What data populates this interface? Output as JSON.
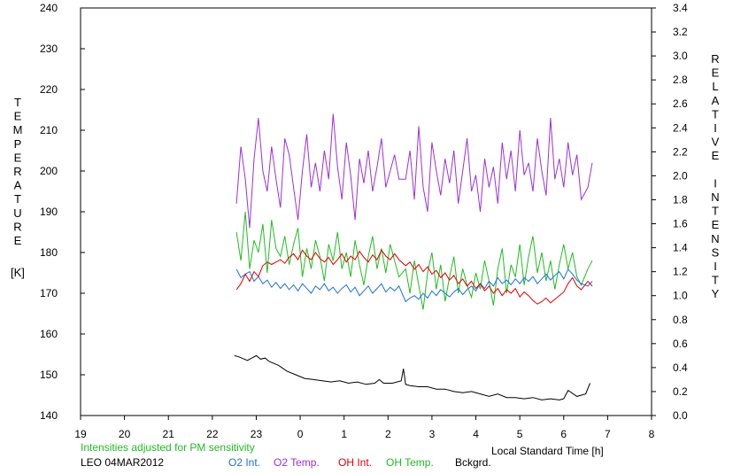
{
  "chart_data": {
    "type": "line",
    "left_axis": {
      "label": "TEMPERATURE",
      "unit": "[K]",
      "ylim": [
        140,
        240
      ],
      "ticks": [
        "140",
        "150",
        "160",
        "170",
        "180",
        "190",
        "200",
        "210",
        "220",
        "230",
        "240"
      ]
    },
    "right_axis": {
      "label": "RELATIVE INTENSITY",
      "ylim": [
        0.0,
        3.4
      ],
      "ticks": [
        "0.0",
        "0.2",
        "0.4",
        "0.6",
        "0.8",
        "1.0",
        "1.2",
        "1.4",
        "1.6",
        "1.8",
        "2.0",
        "2.2",
        "2.4",
        "2.6",
        "2.8",
        "3.0",
        "3.2",
        "3.4"
      ]
    },
    "x_axis": {
      "label": "Local Standard Time [h]",
      "ticks": [
        "19",
        "20",
        "21",
        "22",
        "23",
        "0",
        "1",
        "2",
        "3",
        "4",
        "5",
        "6",
        "7",
        "8"
      ]
    },
    "note": "Intensities adjusted for PM sensitivity",
    "station": "LEO 04MAR2012",
    "grid": false,
    "legend": [
      {
        "name": "O2 Int.",
        "color": "#1f6fe0"
      },
      {
        "name": "O2 Temp.",
        "color": "#9b30d9"
      },
      {
        "name": "OH Int.",
        "color": "#e00000"
      },
      {
        "name": "OH Temp.",
        "color": "#22bb22"
      },
      {
        "name": "Bckgrd.",
        "color": "#000000"
      }
    ],
    "series": [
      {
        "name": "O2 Temp.",
        "axis": "left",
        "color": "#9b30d9",
        "x": [
          22.55,
          22.65,
          22.75,
          22.85,
          22.95,
          23.05,
          23.15,
          23.25,
          23.35,
          23.45,
          23.55,
          23.65,
          23.75,
          23.85,
          23.95,
          24.05,
          24.15,
          24.25,
          24.35,
          24.45,
          24.55,
          24.65,
          24.75,
          24.85,
          24.95,
          25.05,
          25.15,
          25.25,
          25.35,
          25.45,
          25.55,
          25.65,
          25.75,
          25.85,
          25.95,
          26.05,
          26.15,
          26.25,
          26.4,
          26.5,
          26.6,
          26.7,
          26.8,
          26.9,
          27.0,
          27.1,
          27.2,
          27.3,
          27.4,
          27.5,
          27.6,
          27.7,
          27.8,
          27.9,
          28.0,
          28.1,
          28.2,
          28.3,
          28.4,
          28.5,
          28.6,
          28.7,
          28.8,
          28.9,
          29.0,
          29.1,
          29.2,
          29.3,
          29.4,
          29.5,
          29.6,
          29.7,
          29.8,
          29.9,
          30.0,
          30.1,
          30.2,
          30.3,
          30.4,
          30.55,
          30.65
        ],
        "values": [
          192,
          206,
          198,
          186,
          203,
          213,
          200,
          195,
          206,
          198,
          191,
          208,
          204,
          196,
          188,
          200,
          209,
          196,
          202,
          195,
          205,
          198,
          214,
          201,
          193,
          207,
          199,
          188,
          203,
          197,
          205,
          195,
          201,
          208,
          196,
          200,
          204,
          198,
          198,
          205,
          193,
          211,
          196,
          190,
          207,
          200,
          194,
          203,
          197,
          205,
          192,
          200,
          208,
          195,
          199,
          190,
          203,
          196,
          201,
          192,
          207,
          198,
          205,
          195,
          210,
          199,
          202,
          195,
          208,
          200,
          194,
          213,
          198,
          203,
          196,
          207,
          199,
          204,
          193,
          196,
          202
        ]
      },
      {
        "name": "OH Temp.",
        "axis": "left",
        "color": "#22bb22",
        "x": [
          22.55,
          22.65,
          22.75,
          22.85,
          22.95,
          23.05,
          23.15,
          23.25,
          23.35,
          23.45,
          23.55,
          23.65,
          23.75,
          23.85,
          23.95,
          24.05,
          24.15,
          24.25,
          24.35,
          24.45,
          24.55,
          24.65,
          24.75,
          24.85,
          24.95,
          25.05,
          25.15,
          25.25,
          25.35,
          25.45,
          25.55,
          25.65,
          25.75,
          25.85,
          25.95,
          26.05,
          26.15,
          26.25,
          26.4,
          26.5,
          26.6,
          26.7,
          26.8,
          26.9,
          27.0,
          27.1,
          27.2,
          27.3,
          27.4,
          27.5,
          27.6,
          27.7,
          27.8,
          27.9,
          28.0,
          28.1,
          28.2,
          28.3,
          28.4,
          28.5,
          28.6,
          28.7,
          28.8,
          28.9,
          29.0,
          29.1,
          29.2,
          29.3,
          29.4,
          29.5,
          29.6,
          29.7,
          29.8,
          29.9,
          30.0,
          30.1,
          30.2,
          30.3,
          30.4,
          30.55,
          30.65
        ],
        "values": [
          185,
          178,
          190,
          176,
          183,
          180,
          187,
          175,
          188,
          181,
          179,
          184,
          177,
          182,
          186,
          174,
          181,
          176,
          183,
          179,
          173,
          182,
          178,
          185,
          176,
          180,
          174,
          183,
          177,
          172,
          179,
          184,
          176,
          181,
          175,
          182,
          178,
          174,
          176,
          170,
          178,
          172,
          166,
          175,
          180,
          171,
          177,
          168,
          174,
          179,
          170,
          176,
          172,
          169,
          175,
          171,
          178,
          173,
          167,
          176,
          181,
          170,
          177,
          174,
          182,
          172,
          179,
          184,
          175,
          180,
          173,
          178,
          171,
          177,
          182,
          176,
          180,
          174,
          172,
          176,
          178
        ]
      },
      {
        "name": "OH Int.",
        "axis": "right",
        "color": "#e00000",
        "x": [
          22.55,
          22.65,
          22.75,
          22.85,
          22.95,
          23.05,
          23.15,
          23.25,
          23.35,
          23.45,
          23.55,
          23.65,
          23.75,
          23.85,
          23.95,
          24.05,
          24.15,
          24.25,
          24.35,
          24.45,
          24.55,
          24.65,
          24.75,
          24.85,
          24.95,
          25.05,
          25.15,
          25.25,
          25.35,
          25.45,
          25.55,
          25.65,
          25.75,
          25.85,
          25.95,
          26.05,
          26.15,
          26.25,
          26.4,
          26.5,
          26.6,
          26.7,
          26.8,
          26.9,
          27.0,
          27.1,
          27.2,
          27.3,
          27.4,
          27.5,
          27.6,
          27.7,
          27.8,
          27.9,
          28.0,
          28.1,
          28.2,
          28.3,
          28.4,
          28.5,
          28.6,
          28.7,
          28.8,
          28.9,
          29.0,
          29.1,
          29.2,
          29.3,
          29.4,
          29.5,
          29.6,
          29.7,
          29.8,
          29.9,
          30.0,
          30.1,
          30.2,
          30.3,
          30.4,
          30.55,
          30.65
        ],
        "values": [
          1.05,
          1.1,
          1.18,
          1.12,
          1.2,
          1.16,
          1.25,
          1.28,
          1.26,
          1.28,
          1.3,
          1.27,
          1.32,
          1.35,
          1.3,
          1.38,
          1.33,
          1.3,
          1.36,
          1.31,
          1.28,
          1.32,
          1.26,
          1.3,
          1.35,
          1.28,
          1.33,
          1.3,
          1.37,
          1.32,
          1.28,
          1.34,
          1.3,
          1.38,
          1.33,
          1.3,
          1.35,
          1.3,
          1.25,
          1.28,
          1.22,
          1.26,
          1.2,
          1.24,
          1.18,
          1.21,
          1.15,
          1.19,
          1.13,
          1.17,
          1.1,
          1.14,
          1.08,
          1.12,
          1.06,
          1.1,
          1.04,
          1.08,
          1.02,
          1.06,
          1.0,
          1.05,
          1.02,
          1.06,
          0.99,
          1.03,
          1.0,
          0.96,
          0.93,
          0.95,
          0.98,
          0.94,
          0.97,
          1.0,
          1.03,
          1.1,
          1.15,
          1.08,
          1.05,
          1.12,
          1.08
        ]
      },
      {
        "name": "O2 Int.",
        "axis": "right",
        "color": "#1f6fe0",
        "x": [
          22.55,
          22.65,
          22.75,
          22.85,
          22.95,
          23.05,
          23.15,
          23.25,
          23.35,
          23.45,
          23.55,
          23.65,
          23.75,
          23.85,
          23.95,
          24.05,
          24.15,
          24.25,
          24.35,
          24.45,
          24.55,
          24.65,
          24.75,
          24.85,
          24.95,
          25.05,
          25.15,
          25.25,
          25.35,
          25.45,
          25.55,
          25.65,
          25.75,
          25.85,
          25.95,
          26.05,
          26.15,
          26.25,
          26.4,
          26.5,
          26.6,
          26.7,
          26.8,
          26.9,
          27.0,
          27.1,
          27.2,
          27.3,
          27.4,
          27.5,
          27.6,
          27.7,
          27.8,
          27.9,
          28.0,
          28.1,
          28.2,
          28.3,
          28.4,
          28.5,
          28.6,
          28.7,
          28.8,
          28.9,
          29.0,
          29.1,
          29.2,
          29.3,
          29.4,
          29.5,
          29.6,
          29.7,
          29.8,
          29.9,
          30.0,
          30.1,
          30.2,
          30.3,
          30.4,
          30.55,
          30.65
        ],
        "values": [
          1.22,
          1.15,
          1.18,
          1.2,
          1.12,
          1.16,
          1.1,
          1.13,
          1.07,
          1.11,
          1.06,
          1.1,
          1.05,
          1.09,
          1.04,
          1.1,
          1.06,
          1.02,
          1.08,
          1.05,
          1.1,
          1.04,
          1.07,
          1.02,
          1.06,
          1.09,
          1.03,
          1.07,
          1.0,
          1.04,
          1.08,
          1.02,
          1.06,
          1.1,
          1.03,
          1.07,
          1.04,
          1.08,
          0.95,
          0.98,
          1.0,
          0.97,
          1.02,
          0.98,
          1.04,
          1.0,
          1.05,
          1.02,
          0.99,
          1.03,
          1.06,
          1.01,
          1.05,
          1.08,
          1.04,
          1.1,
          1.06,
          1.12,
          1.08,
          1.15,
          1.1,
          1.13,
          1.09,
          1.14,
          1.1,
          1.15,
          1.12,
          1.16,
          1.1,
          1.14,
          1.18,
          1.13,
          1.17,
          1.2,
          1.14,
          1.22,
          1.18,
          1.13,
          1.1,
          1.08,
          1.12
        ]
      },
      {
        "name": "Bckgrd.",
        "axis": "right",
        "color": "#000000",
        "x": [
          22.5,
          22.6,
          22.8,
          22.9,
          23.0,
          23.1,
          23.2,
          23.3,
          23.5,
          23.7,
          23.9,
          24.1,
          24.3,
          24.5,
          24.7,
          24.9,
          25.1,
          25.3,
          25.5,
          25.7,
          25.8,
          25.9,
          26.1,
          26.3,
          26.35,
          26.4,
          26.5,
          26.7,
          26.9,
          27.1,
          27.3,
          27.5,
          27.7,
          27.9,
          28.1,
          28.3,
          28.5,
          28.7,
          28.9,
          29.1,
          29.3,
          29.5,
          29.7,
          29.9,
          30.0,
          30.1,
          30.3,
          30.5,
          30.6
        ],
        "values": [
          0.5,
          0.49,
          0.46,
          0.48,
          0.5,
          0.47,
          0.48,
          0.45,
          0.42,
          0.37,
          0.34,
          0.31,
          0.3,
          0.29,
          0.28,
          0.29,
          0.27,
          0.28,
          0.26,
          0.27,
          0.3,
          0.27,
          0.27,
          0.29,
          0.39,
          0.26,
          0.25,
          0.24,
          0.24,
          0.22,
          0.22,
          0.2,
          0.19,
          0.2,
          0.18,
          0.16,
          0.18,
          0.15,
          0.15,
          0.14,
          0.15,
          0.13,
          0.14,
          0.13,
          0.14,
          0.21,
          0.16,
          0.18,
          0.27
        ]
      }
    ]
  }
}
